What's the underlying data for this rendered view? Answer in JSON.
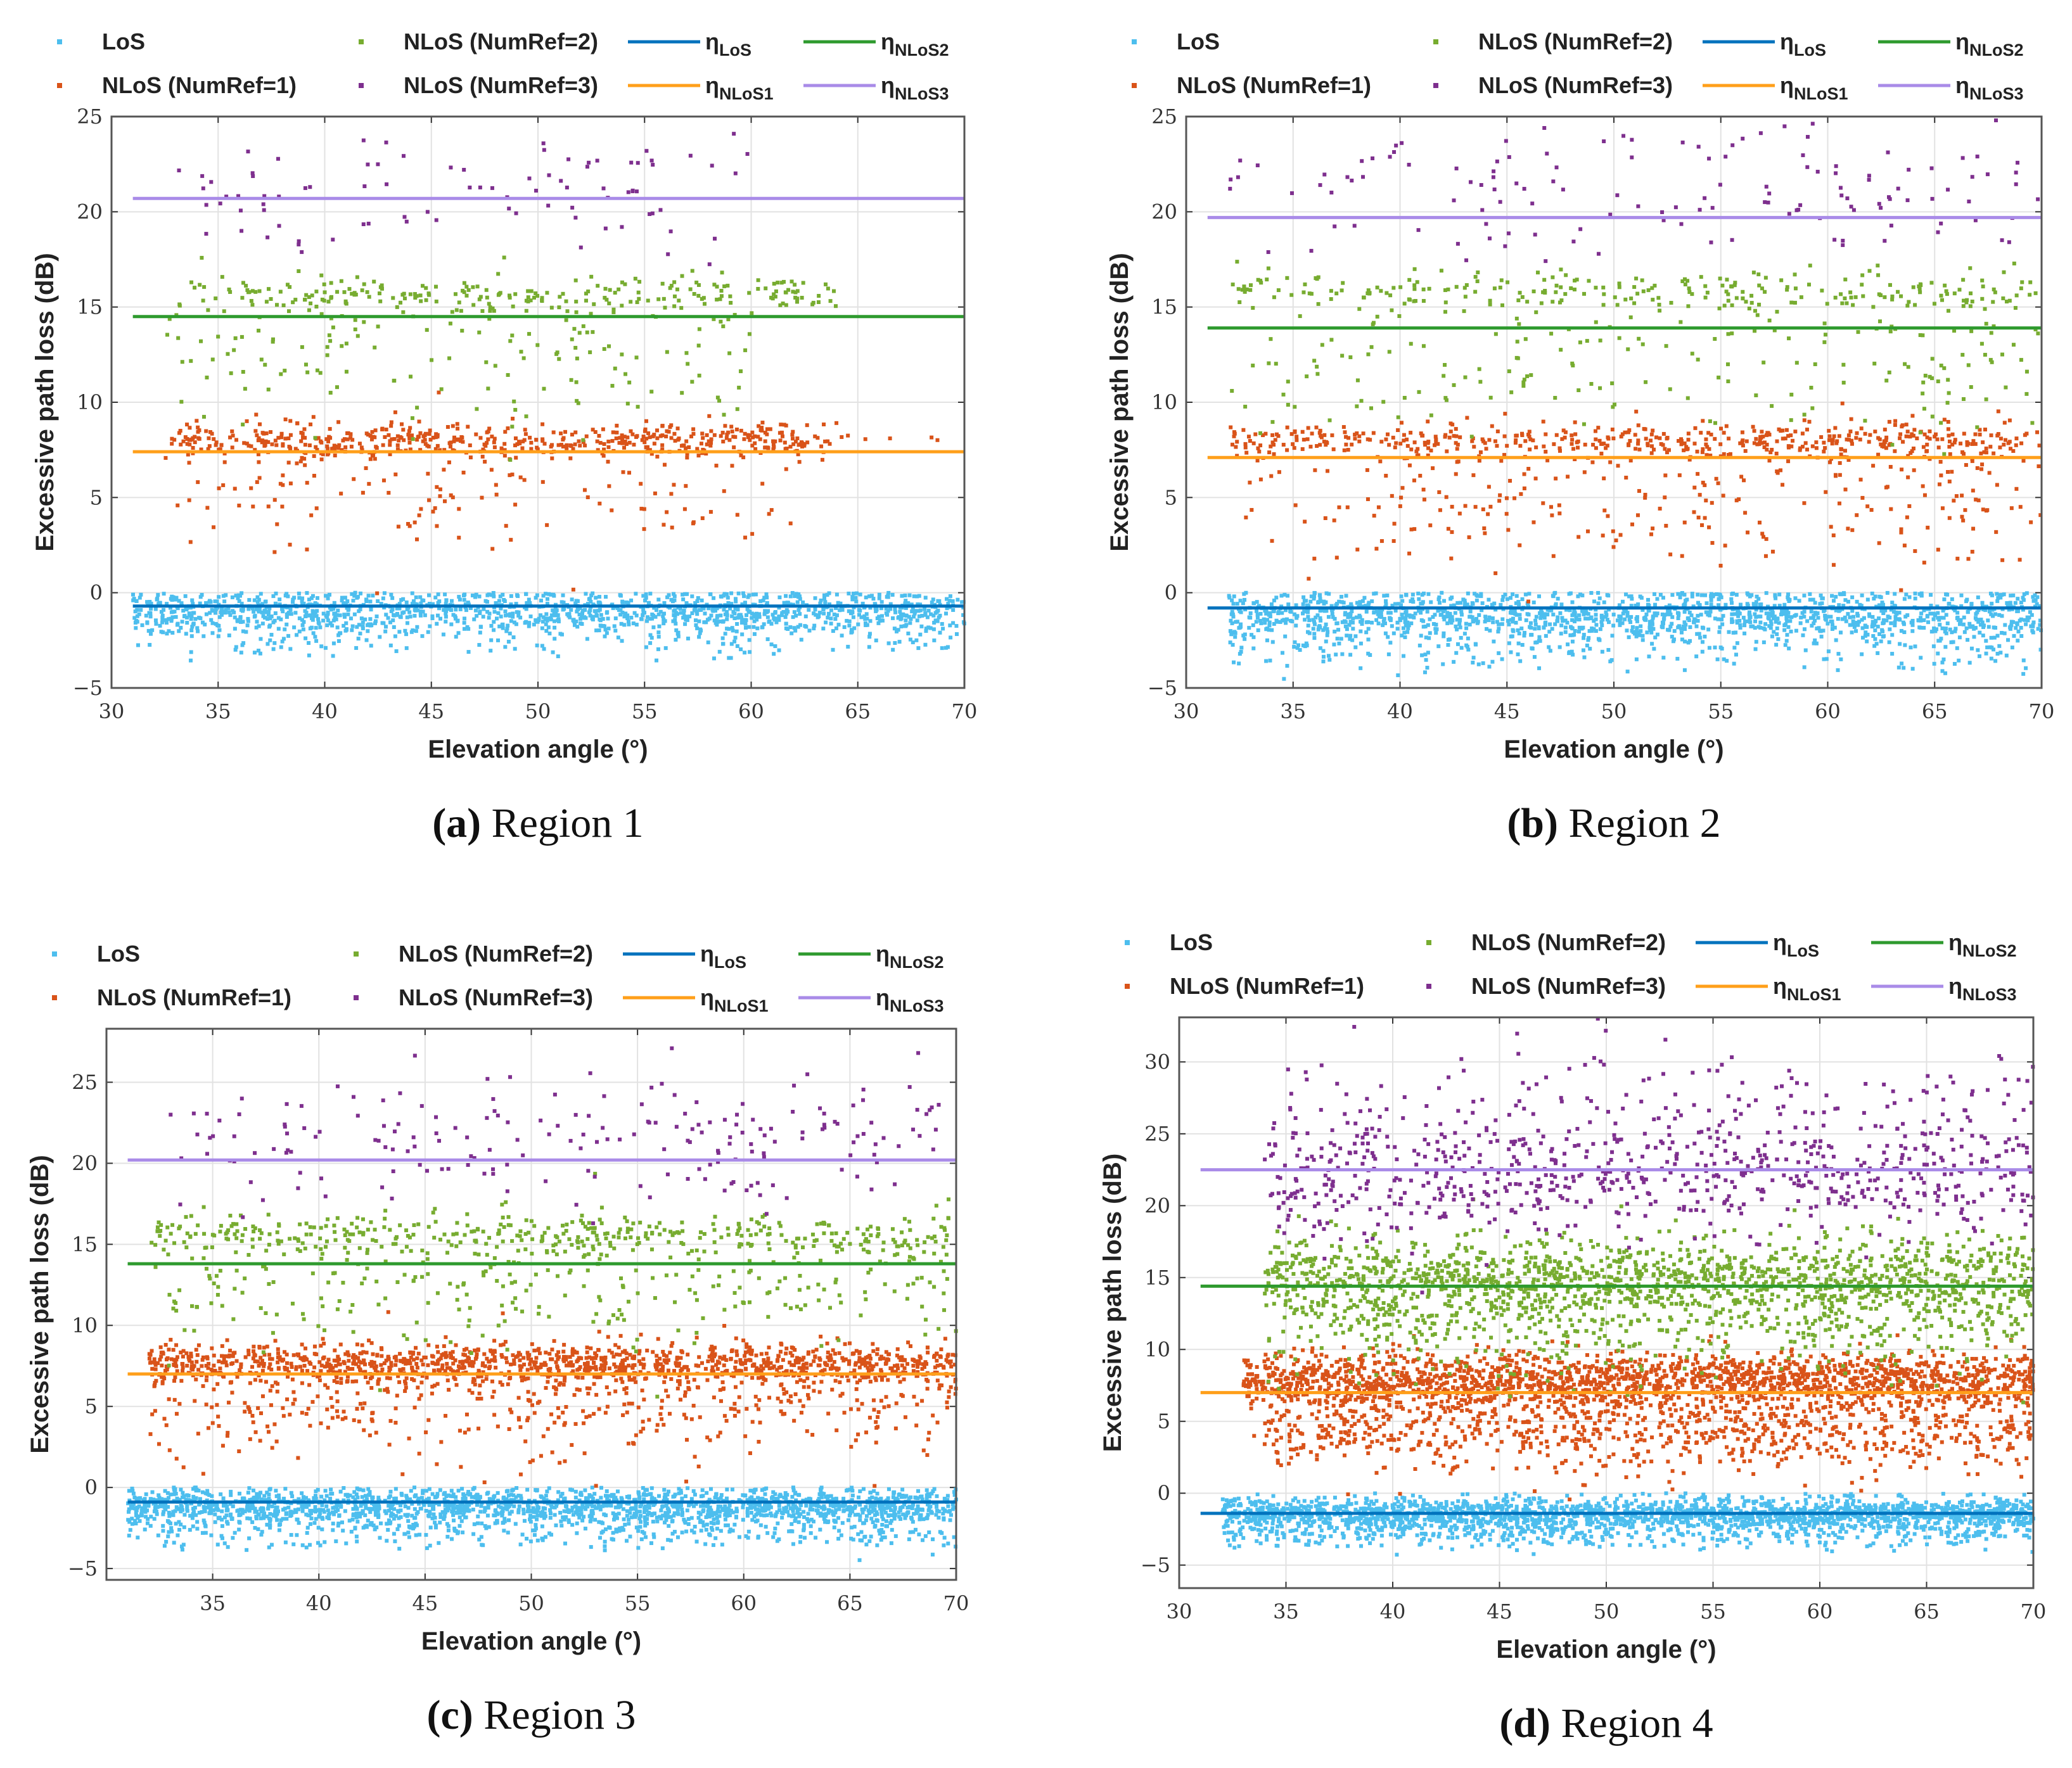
{
  "legend": {
    "los": "LoS",
    "nlos1": "NLoS (NumRef=1)",
    "nlos2": "NLoS (NumRef=2)",
    "nlos3": "NLoS (NumRef=3)",
    "eta_symbol": "η",
    "eta_los_sub": "LoS",
    "eta_nlos1_sub": "NLoS1",
    "eta_nlos2_sub": "NLoS2",
    "eta_nlos3_sub": "NLoS3"
  },
  "colors": {
    "los": "#4DBEEE",
    "nlos1": "#D95319",
    "nlos2": "#77AC30",
    "nlos3": "#7E2F8E",
    "eta_los": "#0072BD",
    "eta_nlos1": "#FF9F1A",
    "eta_nlos2": "#2E9A2E",
    "eta_nlos3": "#A98BE8"
  },
  "chart_data": [
    {
      "type": "scatter",
      "caption_letter": "(a)",
      "caption_text": " Region 1",
      "xlabel": "Elevation angle (°)",
      "ylabel": "Excessive path loss (dB)",
      "xlim": [
        30,
        70
      ],
      "ylim": [
        -5,
        25
      ],
      "grid": true,
      "xticks": [
        "30",
        "35",
        "40",
        "45",
        "50",
        "55",
        "60",
        "65",
        "70"
      ],
      "yticks": [
        "−5",
        "0",
        "5",
        "10",
        "15",
        "20",
        "25"
      ],
      "eta": {
        "los": -0.7,
        "nlos1": 7.4,
        "nlos2": 14.5,
        "nlos3": 20.7,
        "x_start": 31
      },
      "clusters": {
        "los": [
          {
            "x": [
              31,
              70
            ],
            "mean": -1.0,
            "sd": 0.6,
            "n": 1300,
            "max": 0
          },
          {
            "x": [
              32,
              70
            ],
            "mean": -2.4,
            "sd": 0.6,
            "n": 150,
            "max": 0
          }
        ],
        "nlos1": [
          {
            "x": [
              32.5,
              64
            ],
            "mean": 8.0,
            "sd": 0.45,
            "n": 500
          },
          {
            "x": [
              33,
              62
            ],
            "mean": 5.5,
            "sd": 1.8,
            "n": 150
          },
          {
            "x": [
              64,
              69
            ],
            "mean": 8.1,
            "sd": 0.1,
            "n": 6
          }
        ],
        "nlos2": [
          {
            "x": [
              33,
              64
            ],
            "mean": 15.6,
            "sd": 0.5,
            "n": 240
          },
          {
            "x": [
              32.5,
              60
            ],
            "mean": 12.5,
            "sd": 1.8,
            "n": 150
          }
        ],
        "nlos3": [
          {
            "x": [
              33,
              60
            ],
            "mean": 21.0,
            "sd": 1.6,
            "n": 90
          }
        ]
      }
    },
    {
      "type": "scatter",
      "caption_letter": "(b)",
      "caption_text": " Region 2",
      "xlabel": "Elevation angle (°)",
      "ylabel": "Excessive path loss (dB)",
      "xlim": [
        30,
        70
      ],
      "ylim": [
        -5,
        25
      ],
      "grid": true,
      "xticks": [
        "30",
        "35",
        "40",
        "45",
        "50",
        "55",
        "60",
        "65",
        "70"
      ],
      "yticks": [
        "−5",
        "0",
        "5",
        "10",
        "15",
        "20",
        "25"
      ],
      "eta": {
        "los": -0.8,
        "nlos1": 7.1,
        "nlos2": 13.9,
        "nlos3": 19.7,
        "x_start": 31
      },
      "clusters": {
        "los": [
          {
            "x": [
              32,
              70
            ],
            "mean": -1.2,
            "sd": 0.7,
            "n": 1400,
            "max": 0
          },
          {
            "x": [
              32,
              70
            ],
            "mean": -3.0,
            "sd": 0.6,
            "n": 200,
            "max": 0
          }
        ],
        "nlos1": [
          {
            "x": [
              32,
              70
            ],
            "mean": 8.0,
            "sd": 0.5,
            "n": 480
          },
          {
            "x": [
              32,
              70
            ],
            "mean": 5.0,
            "sd": 1.8,
            "n": 250
          }
        ],
        "nlos2": [
          {
            "x": [
              32,
              70
            ],
            "mean": 15.8,
            "sd": 0.5,
            "n": 240
          },
          {
            "x": [
              32,
              70
            ],
            "mean": 12.5,
            "sd": 2.0,
            "n": 200
          }
        ],
        "nlos3": [
          {
            "x": [
              32,
              70
            ],
            "mean": 21.0,
            "sd": 2.0,
            "n": 140
          }
        ]
      }
    },
    {
      "type": "scatter",
      "caption_letter": "(c)",
      "caption_text": " Region 3",
      "xlabel": "Elevation angle (°)",
      "ylabel": "Excessive path loss (dB)",
      "xlim": [
        30,
        70
      ],
      "ylim": [
        -5.7,
        28.3
      ],
      "grid": true,
      "xticks": [
        "",
        "35",
        "40",
        "45",
        "50",
        "55",
        "60",
        "65",
        "70"
      ],
      "yticks": [
        "−5",
        "0",
        "5",
        "10",
        "15",
        "20",
        "25"
      ],
      "eta": {
        "los": -0.9,
        "nlos1": 7.0,
        "nlos2": 13.8,
        "nlos3": 20.2,
        "x_start": 31
      },
      "clusters": {
        "los": [
          {
            "x": [
              31,
              70
            ],
            "mean": -1.2,
            "sd": 0.6,
            "n": 1800,
            "max": 0
          },
          {
            "x": [
              31,
              70
            ],
            "mean": -2.8,
            "sd": 0.6,
            "n": 300,
            "max": 0
          }
        ],
        "nlos1": [
          {
            "x": [
              32,
              70
            ],
            "mean": 7.6,
            "sd": 0.6,
            "n": 1100
          },
          {
            "x": [
              32,
              70
            ],
            "mean": 5.5,
            "sd": 1.8,
            "n": 500
          }
        ],
        "nlos2": [
          {
            "x": [
              32,
              70
            ],
            "mean": 15.5,
            "sd": 0.7,
            "n": 380
          },
          {
            "x": [
              32,
              70
            ],
            "mean": 12.5,
            "sd": 2.0,
            "n": 300
          }
        ],
        "nlos3": [
          {
            "x": [
              33,
              70
            ],
            "mean": 21.5,
            "sd": 2.2,
            "n": 200
          }
        ]
      }
    },
    {
      "type": "scatter",
      "caption_letter": "(d)",
      "caption_text": " Region 4",
      "xlabel": "Elevation angle (°)",
      "ylabel": "Excessive path loss (dB)",
      "xlim": [
        30,
        70
      ],
      "ylim": [
        -6.6,
        33.1
      ],
      "grid": true,
      "xticks": [
        "30",
        "35",
        "40",
        "45",
        "50",
        "55",
        "60",
        "65",
        "70"
      ],
      "yticks": [
        "−5",
        "0",
        "5",
        "10",
        "15",
        "20",
        "25",
        "30"
      ],
      "eta": {
        "los": -1.4,
        "nlos1": 7.0,
        "nlos2": 14.4,
        "nlos3": 22.5,
        "x_start": 31
      },
      "clusters": {
        "los": [
          {
            "x": [
              32,
              70
            ],
            "mean": -1.5,
            "sd": 0.6,
            "n": 2000,
            "max": 0
          },
          {
            "x": [
              32,
              70
            ],
            "mean": -3.0,
            "sd": 0.5,
            "n": 350,
            "max": 0
          }
        ],
        "nlos1": [
          {
            "x": [
              33,
              70
            ],
            "mean": 7.8,
            "sd": 1.0,
            "n": 1800
          },
          {
            "x": [
              34,
              70
            ],
            "mean": 4.5,
            "sd": 1.5,
            "n": 900
          }
        ],
        "nlos2": [
          {
            "x": [
              34,
              70
            ],
            "mean": 15.0,
            "sd": 1.5,
            "n": 1300
          },
          {
            "x": [
              34,
              70
            ],
            "mean": 12.0,
            "sd": 2.0,
            "n": 550
          }
        ],
        "nlos3": [
          {
            "x": [
              34,
              70
            ],
            "mean": 22.0,
            "sd": 2.0,
            "n": 650
          },
          {
            "x": [
              35,
              70
            ],
            "mean": 26.5,
            "sd": 2.5,
            "n": 200
          }
        ]
      }
    }
  ]
}
